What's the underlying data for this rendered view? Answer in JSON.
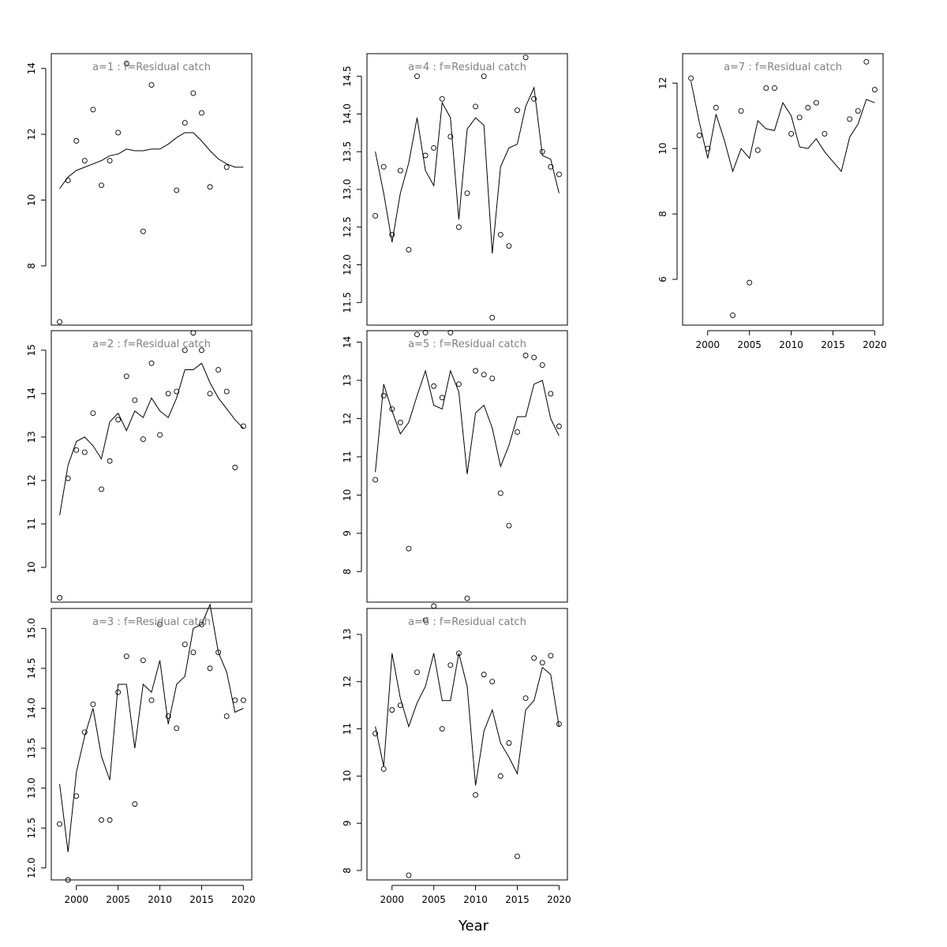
{
  "figure": {
    "xlabel": "Year"
  },
  "chart_data": [
    {
      "type": "scatter",
      "panel": 1,
      "title": "a=1  :  f=Residual catch",
      "xlim": [
        1997,
        2021
      ],
      "ylim": [
        6.2,
        14.45
      ],
      "xticks": [
        2000,
        2005,
        2010,
        2015,
        2020
      ],
      "yticks": [
        8,
        10,
        12,
        14
      ],
      "x": [
        1998,
        1999,
        2000,
        2001,
        2002,
        2003,
        2004,
        2005,
        2006,
        2007,
        2008,
        2009,
        2010,
        2011,
        2012,
        2013,
        2014,
        2015,
        2016,
        2017,
        2018,
        2019,
        2020
      ],
      "obs": [
        6.3,
        10.6,
        11.8,
        11.2,
        12.75,
        10.45,
        11.2,
        12.05,
        14.15,
        null,
        9.05,
        13.5,
        null,
        null,
        10.3,
        12.35,
        13.25,
        12.65,
        10.4,
        null,
        11.0,
        null,
        null
      ],
      "fit": [
        10.35,
        10.7,
        10.9,
        11.0,
        11.1,
        11.2,
        11.35,
        11.4,
        11.55,
        11.5,
        11.5,
        11.55,
        11.55,
        11.7,
        11.9,
        12.05,
        12.05,
        11.8,
        11.5,
        11.25,
        11.1,
        11.0,
        11.0
      ]
    },
    {
      "type": "scatter",
      "panel": 2,
      "title": "a=2  :  f=Residual catch",
      "xlim": [
        1997,
        2021
      ],
      "ylim": [
        9.2,
        15.45
      ],
      "xticks": [
        2000,
        2005,
        2010,
        2015,
        2020
      ],
      "yticks": [
        10,
        11,
        12,
        13,
        14,
        15
      ],
      "x": [
        1998,
        1999,
        2000,
        2001,
        2002,
        2003,
        2004,
        2005,
        2006,
        2007,
        2008,
        2009,
        2010,
        2011,
        2012,
        2013,
        2014,
        2015,
        2016,
        2017,
        2018,
        2019,
        2020
      ],
      "obs": [
        9.3,
        12.05,
        12.7,
        12.65,
        13.55,
        11.8,
        12.45,
        13.4,
        14.4,
        13.85,
        12.95,
        14.7,
        13.05,
        14.0,
        14.05,
        15.0,
        15.4,
        15.0,
        14.0,
        14.55,
        14.05,
        12.3,
        13.25
      ],
      "fit": [
        11.2,
        12.35,
        12.9,
        13.0,
        12.8,
        12.5,
        13.35,
        13.55,
        13.15,
        13.6,
        13.45,
        13.9,
        13.6,
        13.45,
        13.9,
        14.55,
        14.55,
        14.7,
        14.25,
        13.9,
        13.65,
        13.4,
        13.2
      ]
    },
    {
      "type": "scatter",
      "panel": 3,
      "title": "a=3  :  f=Residual catch",
      "xlim": [
        1997,
        2021
      ],
      "ylim": [
        11.85,
        15.25
      ],
      "xticks": [
        2000,
        2005,
        2010,
        2015,
        2020
      ],
      "yticks": [
        12.0,
        12.5,
        13.0,
        13.5,
        14.0,
        14.5,
        15.0
      ],
      "x": [
        1998,
        1999,
        2000,
        2001,
        2002,
        2003,
        2004,
        2005,
        2006,
        2007,
        2008,
        2009,
        2010,
        2011,
        2012,
        2013,
        2014,
        2015,
        2016,
        2017,
        2018,
        2019,
        2020
      ],
      "obs": [
        12.55,
        11.85,
        12.9,
        13.7,
        14.05,
        12.6,
        12.6,
        14.2,
        14.65,
        12.8,
        14.6,
        14.1,
        15.05,
        13.9,
        13.75,
        14.8,
        14.7,
        15.05,
        14.5,
        14.7,
        13.9,
        14.1,
        14.1
      ],
      "fit": [
        13.05,
        12.2,
        13.2,
        13.65,
        14.0,
        13.4,
        13.1,
        14.3,
        14.3,
        13.5,
        14.3,
        14.2,
        14.6,
        13.8,
        14.3,
        14.4,
        15.0,
        15.05,
        15.3,
        14.7,
        14.45,
        13.95,
        14.0
      ]
    },
    {
      "type": "scatter",
      "panel": 4,
      "title": "a=4  :  f=Residual catch",
      "xlim": [
        1997,
        2021
      ],
      "ylim": [
        11.2,
        14.8
      ],
      "xticks": [
        2000,
        2005,
        2010,
        2015,
        2020
      ],
      "yticks": [
        11.5,
        12.0,
        12.5,
        13.0,
        13.5,
        14.0,
        14.5
      ],
      "x": [
        1998,
        1999,
        2000,
        2001,
        2002,
        2003,
        2004,
        2005,
        2006,
        2007,
        2008,
        2009,
        2010,
        2011,
        2012,
        2013,
        2014,
        2015,
        2016,
        2017,
        2018,
        2019,
        2020
      ],
      "obs": [
        12.65,
        13.3,
        12.4,
        13.25,
        12.2,
        14.5,
        13.45,
        13.55,
        14.2,
        13.7,
        12.5,
        12.95,
        14.1,
        14.5,
        11.3,
        12.4,
        12.25,
        14.05,
        14.75,
        14.2,
        13.5,
        13.3,
        13.2
      ],
      "fit": [
        13.5,
        12.95,
        12.3,
        12.95,
        13.35,
        13.95,
        13.25,
        13.05,
        14.15,
        13.95,
        12.6,
        13.8,
        13.95,
        13.85,
        12.15,
        13.3,
        13.55,
        13.6,
        14.1,
        14.35,
        13.45,
        13.4,
        12.95
      ]
    },
    {
      "type": "scatter",
      "panel": 5,
      "title": "a=5  :  f=Residual catch",
      "xlim": [
        1997,
        2021
      ],
      "ylim": [
        7.2,
        14.3
      ],
      "xticks": [
        2000,
        2005,
        2010,
        2015,
        2020
      ],
      "yticks": [
        8,
        9,
        10,
        11,
        12,
        13,
        14
      ],
      "x": [
        1998,
        1999,
        2000,
        2001,
        2002,
        2003,
        2004,
        2005,
        2006,
        2007,
        2008,
        2009,
        2010,
        2011,
        2012,
        2013,
        2014,
        2015,
        2016,
        2017,
        2018,
        2019,
        2020
      ],
      "obs": [
        10.4,
        12.6,
        12.25,
        11.9,
        8.6,
        14.2,
        14.25,
        12.85,
        12.55,
        14.25,
        12.9,
        7.3,
        13.25,
        13.15,
        13.05,
        10.05,
        9.2,
        11.65,
        13.65,
        13.6,
        13.4,
        12.65,
        11.8
      ],
      "fit": [
        10.6,
        12.9,
        12.2,
        11.6,
        11.9,
        12.6,
        13.25,
        12.35,
        12.25,
        13.25,
        12.7,
        10.55,
        12.15,
        12.35,
        11.75,
        10.75,
        11.3,
        12.05,
        12.05,
        12.9,
        13.0,
        12.0,
        11.55
      ]
    },
    {
      "type": "scatter",
      "panel": 6,
      "title": "a=6  :  f=Residual catch",
      "xlim": [
        1997,
        2021
      ],
      "ylim": [
        7.8,
        13.55
      ],
      "xticks": [
        2000,
        2005,
        2010,
        2015,
        2020
      ],
      "yticks": [
        8,
        9,
        10,
        11,
        12,
        13
      ],
      "x": [
        1998,
        1999,
        2000,
        2001,
        2002,
        2003,
        2004,
        2005,
        2006,
        2007,
        2008,
        2009,
        2010,
        2011,
        2012,
        2013,
        2014,
        2015,
        2016,
        2017,
        2018,
        2019,
        2020
      ],
      "obs": [
        10.9,
        10.15,
        11.4,
        11.5,
        7.9,
        12.2,
        13.3,
        13.6,
        11.0,
        12.35,
        12.6,
        null,
        9.6,
        12.15,
        12.0,
        10.0,
        10.7,
        8.3,
        11.65,
        12.5,
        12.4,
        12.55,
        11.1
      ],
      "fit": [
        11.05,
        10.2,
        12.6,
        11.65,
        11.05,
        11.55,
        11.9,
        12.6,
        11.6,
        11.6,
        12.6,
        11.9,
        9.8,
        10.95,
        11.4,
        10.7,
        10.4,
        10.05,
        11.4,
        11.6,
        12.3,
        12.15,
        11.05
      ]
    },
    {
      "type": "scatter",
      "panel": 7,
      "title": "a=7  :  f=Residual catch",
      "xlim": [
        1997,
        2021
      ],
      "ylim": [
        4.6,
        12.9
      ],
      "xticks": [
        2000,
        2005,
        2010,
        2015,
        2020
      ],
      "yticks": [
        6,
        8,
        10,
        12
      ],
      "x": [
        1998,
        1999,
        2000,
        2001,
        2002,
        2003,
        2004,
        2005,
        2006,
        2007,
        2008,
        2009,
        2010,
        2011,
        2012,
        2013,
        2014,
        2015,
        2016,
        2017,
        2018,
        2019,
        2020
      ],
      "obs": [
        12.15,
        10.4,
        10.0,
        11.25,
        null,
        4.9,
        11.15,
        5.9,
        9.95,
        11.85,
        11.85,
        null,
        10.45,
        10.95,
        11.25,
        11.4,
        10.45,
        null,
        null,
        10.9,
        11.15,
        12.65,
        11.8
      ],
      "fit": [
        12.05,
        10.8,
        9.7,
        11.05,
        10.25,
        9.3,
        10.0,
        9.7,
        10.85,
        10.6,
        10.55,
        11.4,
        11.0,
        10.05,
        10.0,
        10.3,
        9.9,
        9.6,
        9.3,
        10.35,
        10.75,
        11.5,
        11.4
      ]
    }
  ]
}
